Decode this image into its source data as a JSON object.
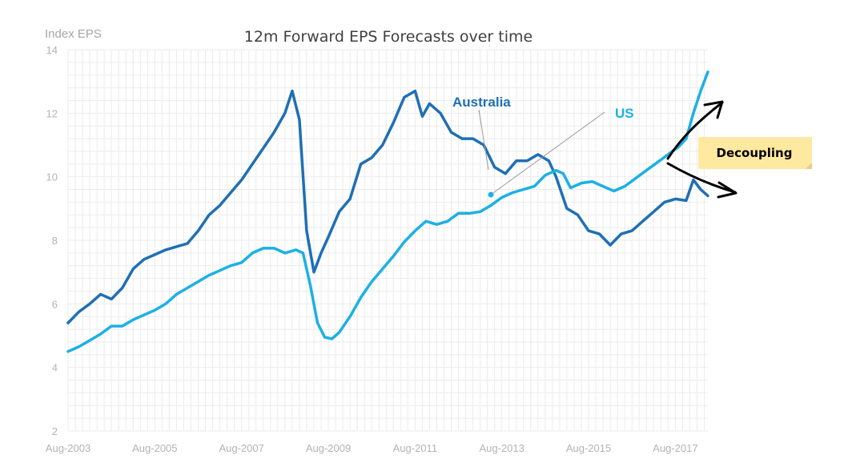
{
  "chart_data": {
    "type": "line",
    "title": "12m Forward EPS Forecasts over time",
    "ylabel": "Index EPS",
    "ylim": [
      2,
      14
    ],
    "yticks": [
      2,
      4,
      6,
      8,
      10,
      12,
      14
    ],
    "xlim": [
      "2003-08",
      "2018-05"
    ],
    "xticks": [
      "Aug-2003",
      "Aug-2005",
      "Aug-2007",
      "Aug-2009",
      "Aug-2011",
      "Aug-2013",
      "Aug-2015",
      "Aug-2017"
    ],
    "grid": true,
    "series": [
      {
        "name": "Australia",
        "color": "#1f6fb5",
        "points": [
          [
            "2003-08",
            5.4
          ],
          [
            "2003-11",
            5.75
          ],
          [
            "2004-02",
            6.0
          ],
          [
            "2004-05",
            6.3
          ],
          [
            "2004-08",
            6.15
          ],
          [
            "2004-11",
            6.5
          ],
          [
            "2005-02",
            7.1
          ],
          [
            "2005-05",
            7.4
          ],
          [
            "2005-08",
            7.55
          ],
          [
            "2005-11",
            7.7
          ],
          [
            "2006-02",
            7.8
          ],
          [
            "2006-05",
            7.9
          ],
          [
            "2006-08",
            8.3
          ],
          [
            "2006-11",
            8.8
          ],
          [
            "2007-02",
            9.1
          ],
          [
            "2007-05",
            9.5
          ],
          [
            "2007-08",
            9.9
          ],
          [
            "2007-11",
            10.4
          ],
          [
            "2008-02",
            10.9
          ],
          [
            "2008-05",
            11.4
          ],
          [
            "2008-08",
            12.0
          ],
          [
            "2008-10",
            12.7
          ],
          [
            "2008-12",
            11.8
          ],
          [
            "2009-02",
            8.3
          ],
          [
            "2009-04",
            7.0
          ],
          [
            "2009-06",
            7.6
          ],
          [
            "2009-08",
            8.1
          ],
          [
            "2009-11",
            8.9
          ],
          [
            "2010-02",
            9.3
          ],
          [
            "2010-05",
            10.4
          ],
          [
            "2010-08",
            10.6
          ],
          [
            "2010-11",
            11.0
          ],
          [
            "2011-02",
            11.7
          ],
          [
            "2011-05",
            12.5
          ],
          [
            "2011-08",
            12.7
          ],
          [
            "2011-10",
            11.9
          ],
          [
            "2011-12",
            12.3
          ],
          [
            "2012-03",
            12.0
          ],
          [
            "2012-06",
            11.4
          ],
          [
            "2012-09",
            11.2
          ],
          [
            "2012-12",
            11.2
          ],
          [
            "2013-03",
            11.0
          ],
          [
            "2013-06",
            10.3
          ],
          [
            "2013-09",
            10.1
          ],
          [
            "2013-12",
            10.5
          ],
          [
            "2014-03",
            10.5
          ],
          [
            "2014-06",
            10.7
          ],
          [
            "2014-09",
            10.5
          ],
          [
            "2014-11",
            10.0
          ],
          [
            "2015-02",
            9.0
          ],
          [
            "2015-05",
            8.8
          ],
          [
            "2015-08",
            8.3
          ],
          [
            "2015-11",
            8.2
          ],
          [
            "2016-02",
            7.85
          ],
          [
            "2016-05",
            8.2
          ],
          [
            "2016-08",
            8.3
          ],
          [
            "2016-11",
            8.6
          ],
          [
            "2017-02",
            8.9
          ],
          [
            "2017-05",
            9.2
          ],
          [
            "2017-08",
            9.3
          ],
          [
            "2017-11",
            9.25
          ],
          [
            "2018-01",
            9.9
          ],
          [
            "2018-03",
            9.6
          ],
          [
            "2018-05",
            9.4
          ]
        ]
      },
      {
        "name": "US",
        "color": "#1cb0e6",
        "points": [
          [
            "2003-08",
            4.5
          ],
          [
            "2003-11",
            4.65
          ],
          [
            "2004-02",
            4.85
          ],
          [
            "2004-05",
            5.05
          ],
          [
            "2004-08",
            5.3
          ],
          [
            "2004-11",
            5.3
          ],
          [
            "2005-02",
            5.5
          ],
          [
            "2005-05",
            5.65
          ],
          [
            "2005-08",
            5.8
          ],
          [
            "2005-11",
            6.0
          ],
          [
            "2006-02",
            6.3
          ],
          [
            "2006-05",
            6.5
          ],
          [
            "2006-08",
            6.7
          ],
          [
            "2006-11",
            6.9
          ],
          [
            "2007-02",
            7.05
          ],
          [
            "2007-05",
            7.2
          ],
          [
            "2007-08",
            7.3
          ],
          [
            "2007-11",
            7.6
          ],
          [
            "2008-02",
            7.75
          ],
          [
            "2008-05",
            7.75
          ],
          [
            "2008-08",
            7.6
          ],
          [
            "2008-11",
            7.7
          ],
          [
            "2009-01",
            7.6
          ],
          [
            "2009-03",
            6.6
          ],
          [
            "2009-05",
            5.4
          ],
          [
            "2009-07",
            4.95
          ],
          [
            "2009-09",
            4.9
          ],
          [
            "2009-11",
            5.1
          ],
          [
            "2010-02",
            5.6
          ],
          [
            "2010-05",
            6.2
          ],
          [
            "2010-08",
            6.7
          ],
          [
            "2010-11",
            7.1
          ],
          [
            "2011-02",
            7.5
          ],
          [
            "2011-05",
            7.95
          ],
          [
            "2011-08",
            8.3
          ],
          [
            "2011-11",
            8.6
          ],
          [
            "2012-02",
            8.5
          ],
          [
            "2012-05",
            8.6
          ],
          [
            "2012-08",
            8.85
          ],
          [
            "2012-11",
            8.85
          ],
          [
            "2013-02",
            8.9
          ],
          [
            "2013-05",
            9.1
          ],
          [
            "2013-08",
            9.35
          ],
          [
            "2013-11",
            9.5
          ],
          [
            "2014-02",
            9.6
          ],
          [
            "2014-05",
            9.7
          ],
          [
            "2014-08",
            10.05
          ],
          [
            "2014-11",
            10.2
          ],
          [
            "2015-01",
            10.1
          ],
          [
            "2015-03",
            9.65
          ],
          [
            "2015-06",
            9.8
          ],
          [
            "2015-09",
            9.85
          ],
          [
            "2015-12",
            9.7
          ],
          [
            "2016-03",
            9.55
          ],
          [
            "2016-06",
            9.7
          ],
          [
            "2016-09",
            9.95
          ],
          [
            "2016-12",
            10.2
          ],
          [
            "2017-03",
            10.45
          ],
          [
            "2017-06",
            10.7
          ],
          [
            "2017-09",
            10.95
          ],
          [
            "2017-11",
            11.2
          ],
          [
            "2018-01",
            12.0
          ],
          [
            "2018-03",
            12.7
          ],
          [
            "2018-05",
            13.3
          ]
        ]
      }
    ],
    "annotations": [
      {
        "text": "Decoupling",
        "style": "sticky-note"
      }
    ]
  }
}
